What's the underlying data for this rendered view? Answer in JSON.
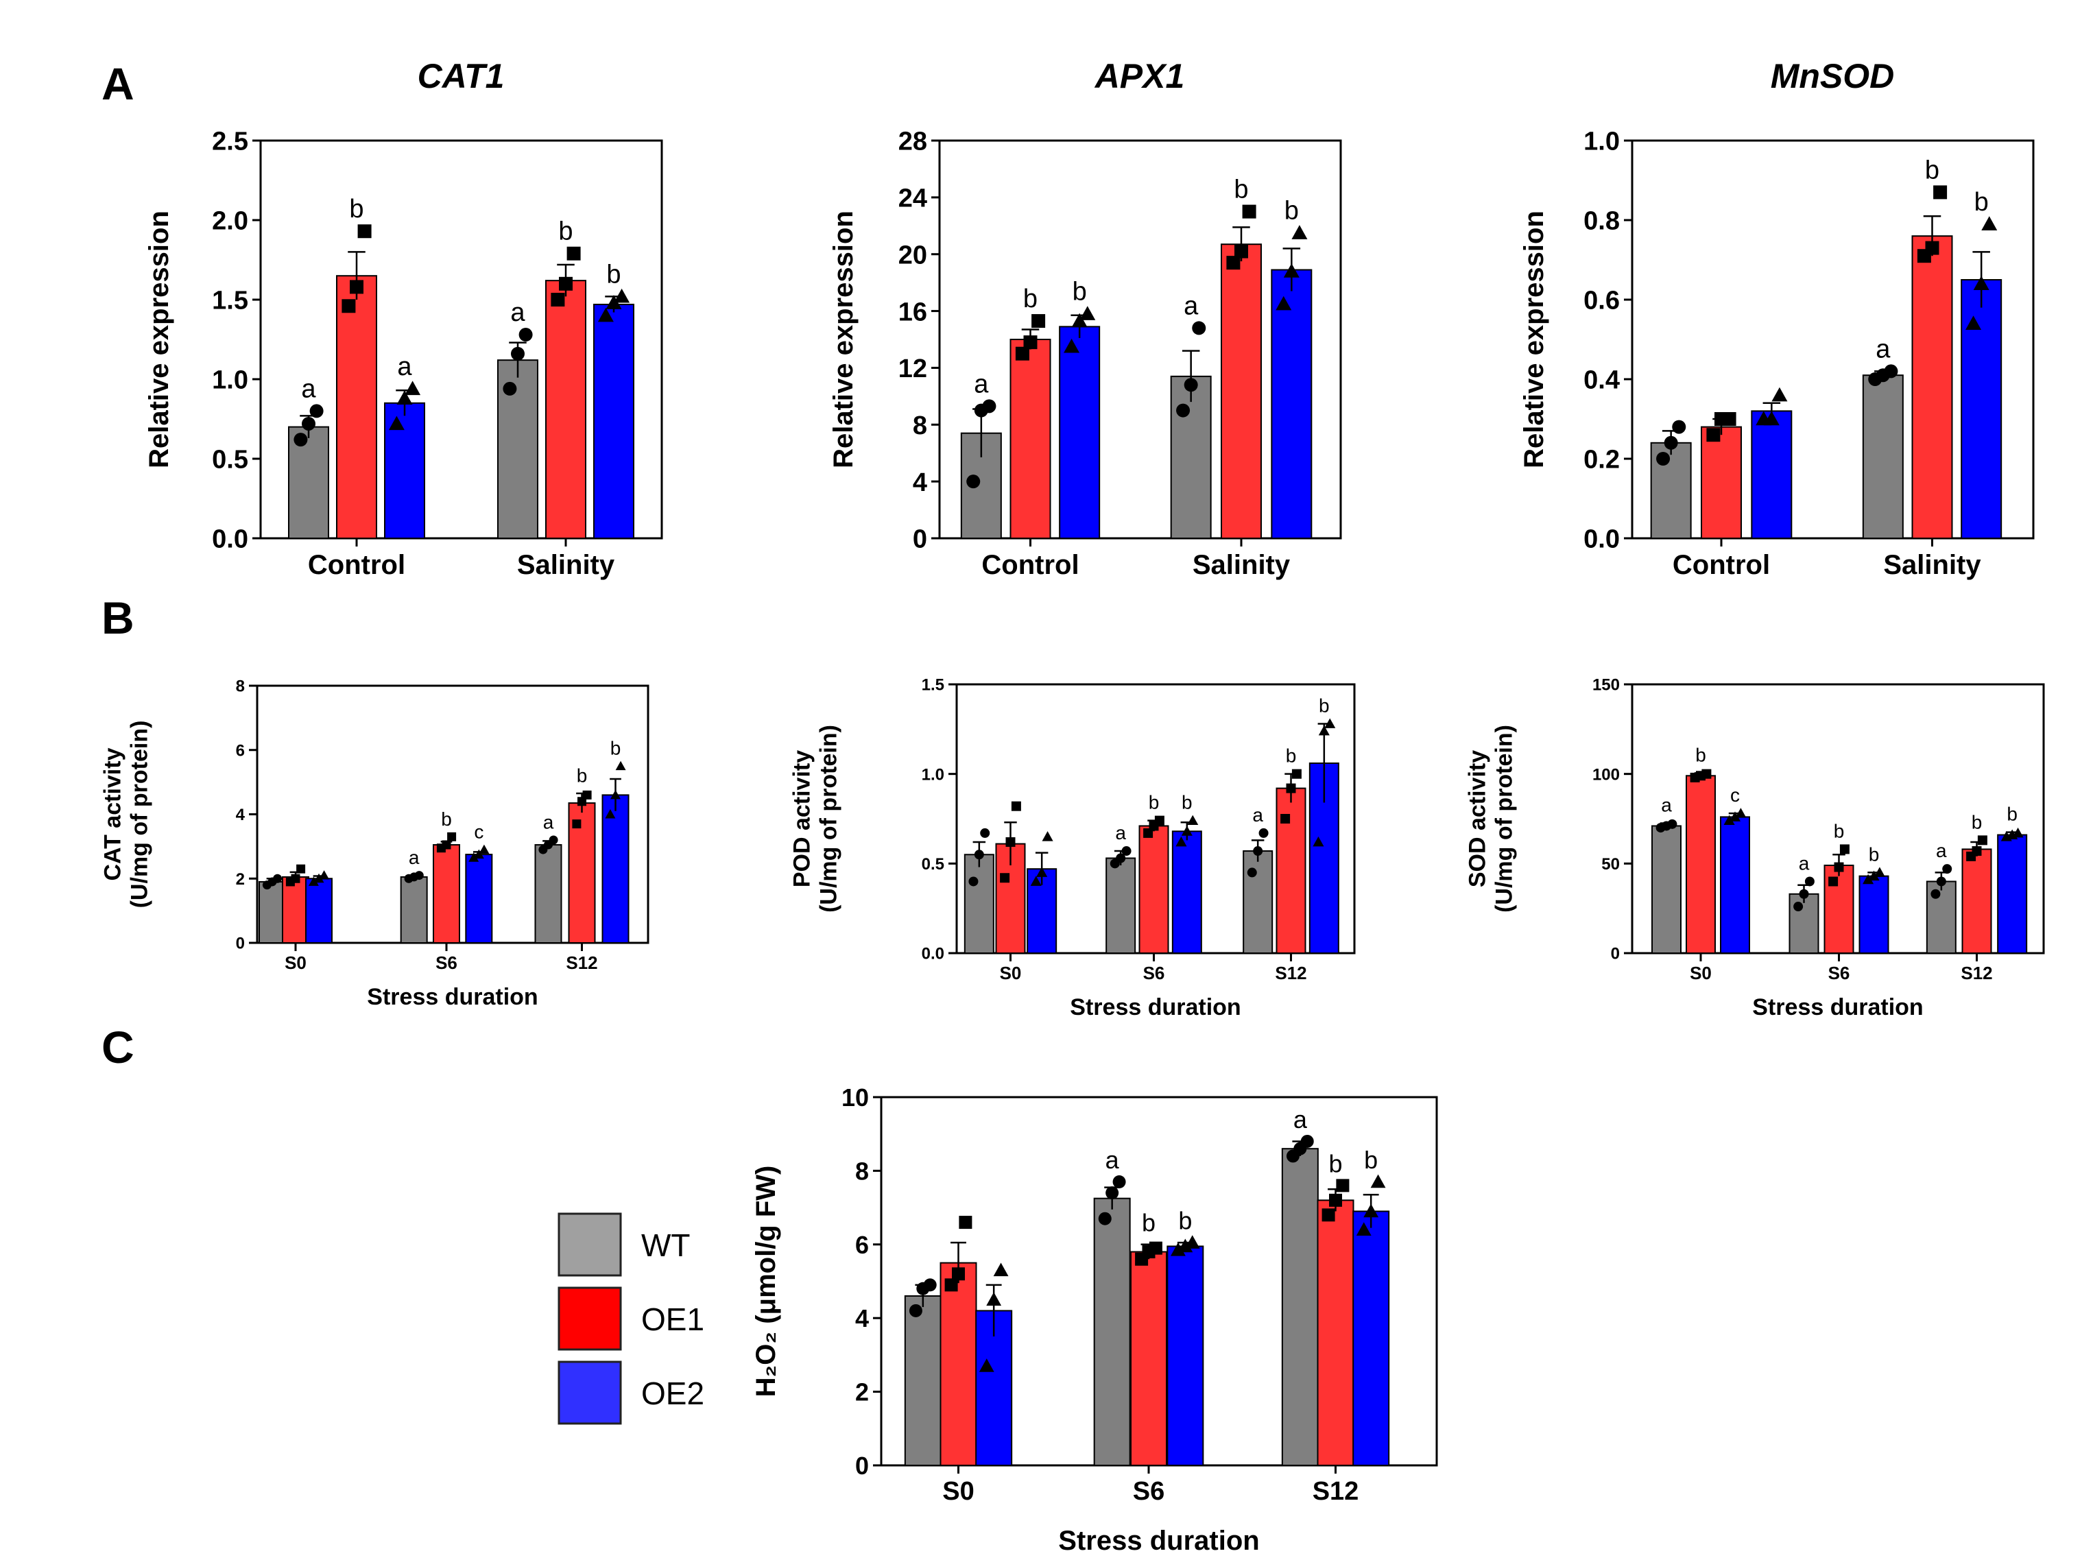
{
  "panels": {
    "A": "A",
    "B": "B",
    "C": "C"
  },
  "colors": {
    "WT": "#808080",
    "OE1": "#ff3333",
    "OE2": "#0000ff",
    "legend_WT": "#a0a0a0",
    "legend_OE1": "#ff0000",
    "legend_OE2": "#3030ff"
  },
  "legend": {
    "labels": [
      "WT",
      "OE1",
      "OE2"
    ]
  },
  "chart_data": [
    {
      "id": "cat1",
      "type": "bar",
      "title": "CAT1",
      "ylabel": [
        "Relative expression"
      ],
      "xlabel": "",
      "categories": [
        "Control",
        "Salinity"
      ],
      "yticks": [
        "0.0",
        "0.5",
        "1.0",
        "1.5",
        "2.0",
        "2.5"
      ],
      "ylim": [
        0,
        2.5
      ],
      "series": [
        {
          "name": "WT",
          "values": [
            0.7,
            1.12
          ],
          "errors": [
            0.07,
            0.11
          ],
          "letters": [
            "a",
            "a"
          ],
          "points": [
            [
              0.62,
              0.72,
              0.8
            ],
            [
              0.94,
              1.16,
              1.28
            ]
          ]
        },
        {
          "name": "OE1",
          "values": [
            1.65,
            1.62
          ],
          "errors": [
            0.15,
            0.1
          ],
          "letters": [
            "b",
            "b"
          ],
          "points": [
            [
              1.46,
              1.58,
              1.93
            ],
            [
              1.5,
              1.6,
              1.79
            ]
          ]
        },
        {
          "name": "OE2",
          "values": [
            0.85,
            1.47
          ],
          "errors": [
            0.08,
            0.05
          ],
          "letters": [
            "a",
            "b"
          ],
          "points": [
            [
              0.72,
              0.88,
              0.94
            ],
            [
              1.4,
              1.48,
              1.52
            ]
          ]
        }
      ]
    },
    {
      "id": "apx1",
      "type": "bar",
      "title": "APX1",
      "ylabel": [
        "Relative expression"
      ],
      "xlabel": "",
      "categories": [
        "Control",
        "Salinity"
      ],
      "yticks": [
        "0",
        "4",
        "8",
        "12",
        "16",
        "20",
        "24",
        "28"
      ],
      "ylim": [
        0,
        28
      ],
      "series": [
        {
          "name": "WT",
          "values": [
            7.4,
            11.4
          ],
          "errors": [
            1.7,
            1.8
          ],
          "letters": [
            "a",
            "a"
          ],
          "points": [
            [
              4.0,
              9.0,
              9.3
            ],
            [
              9.0,
              10.8,
              14.8
            ]
          ]
        },
        {
          "name": "OE1",
          "values": [
            14.0,
            20.7
          ],
          "errors": [
            0.7,
            1.2
          ],
          "letters": [
            "b",
            "b"
          ],
          "points": [
            [
              13.0,
              13.8,
              15.3
            ],
            [
              19.4,
              20.2,
              23.0
            ]
          ]
        },
        {
          "name": "OE2",
          "values": [
            14.9,
            18.9
          ],
          "errors": [
            0.8,
            1.5
          ],
          "letters": [
            "b",
            "b"
          ],
          "points": [
            [
              13.5,
              15.3,
              15.8
            ],
            [
              16.5,
              18.8,
              21.5
            ]
          ]
        }
      ]
    },
    {
      "id": "mnsod",
      "type": "bar",
      "title": "MnSOD",
      "ylabel": [
        "Relative expression"
      ],
      "xlabel": "",
      "categories": [
        "Control",
        "Salinity"
      ],
      "yticks": [
        "0.0",
        "0.2",
        "0.4",
        "0.6",
        "0.8",
        "1.0"
      ],
      "ylim": [
        0,
        1.0
      ],
      "series": [
        {
          "name": "WT",
          "values": [
            0.24,
            0.41
          ],
          "errors": [
            0.03,
            0.01
          ],
          "letters": [
            "",
            "a"
          ],
          "points": [
            [
              0.2,
              0.24,
              0.28
            ],
            [
              0.4,
              0.41,
              0.42
            ]
          ]
        },
        {
          "name": "OE1",
          "values": [
            0.28,
            0.76
          ],
          "errors": [
            0.02,
            0.05
          ],
          "letters": [
            "",
            "b"
          ],
          "points": [
            [
              0.26,
              0.3,
              0.3
            ],
            [
              0.71,
              0.73,
              0.87
            ]
          ]
        },
        {
          "name": "OE2",
          "values": [
            0.32,
            0.65
          ],
          "errors": [
            0.02,
            0.07
          ],
          "letters": [
            "",
            "b"
          ],
          "points": [
            [
              0.3,
              0.3,
              0.36
            ],
            [
              0.54,
              0.64,
              0.79
            ]
          ]
        }
      ]
    },
    {
      "id": "cat_act",
      "type": "bar",
      "title": "",
      "ylabel": [
        "CAT activity",
        "(U/mg of protein)"
      ],
      "xlabel": "Stress duration",
      "categories": [
        "S0",
        "S6",
        "S12"
      ],
      "yticks": [
        "0",
        "2",
        "4",
        "6",
        "8"
      ],
      "ylim": [
        0,
        8
      ],
      "series": [
        {
          "name": "WT",
          "values": [
            1.9,
            2.05,
            3.05
          ],
          "errors": [
            0.1,
            0.05,
            0.12
          ],
          "letters": [
            "",
            "a",
            "a"
          ],
          "points": [
            [
              1.8,
              1.9,
              2.0
            ],
            [
              2.0,
              2.05,
              2.1
            ],
            [
              2.9,
              3.05,
              3.2
            ]
          ]
        },
        {
          "name": "OE1",
          "values": [
            2.05,
            3.05,
            4.35
          ],
          "errors": [
            0.15,
            0.1,
            0.3
          ],
          "letters": [
            "",
            "b",
            "b"
          ],
          "points": [
            [
              1.9,
              2.0,
              2.3
            ],
            [
              2.95,
              3.05,
              3.3
            ],
            [
              3.7,
              4.4,
              4.6
            ]
          ]
        },
        {
          "name": "OE2",
          "values": [
            2.0,
            2.75,
            4.6
          ],
          "errors": [
            0.08,
            0.08,
            0.5
          ],
          "letters": [
            "",
            "c",
            "b"
          ],
          "points": [
            [
              1.9,
              2.0,
              2.1
            ],
            [
              2.65,
              2.75,
              2.9
            ],
            [
              4.0,
              4.6,
              5.5
            ]
          ]
        }
      ]
    },
    {
      "id": "pod_act",
      "type": "bar",
      "title": "",
      "ylabel": [
        "POD activity",
        "(U/mg of protein)"
      ],
      "xlabel": "Stress duration",
      "categories": [
        "S0",
        "S6",
        "S12"
      ],
      "yticks": [
        "0.0",
        "0.5",
        "1.0",
        "1.5"
      ],
      "ylim": [
        0,
        1.5
      ],
      "series": [
        {
          "name": "WT",
          "values": [
            0.55,
            0.53,
            0.57
          ],
          "errors": [
            0.07,
            0.04,
            0.06
          ],
          "letters": [
            "",
            "a",
            "a"
          ],
          "points": [
            [
              0.4,
              0.55,
              0.67
            ],
            [
              0.5,
              0.53,
              0.57
            ],
            [
              0.45,
              0.57,
              0.67
            ]
          ]
        },
        {
          "name": "OE1",
          "values": [
            0.61,
            0.71,
            0.92
          ],
          "errors": [
            0.12,
            0.03,
            0.08
          ],
          "letters": [
            "",
            "b",
            "b"
          ],
          "points": [
            [
              0.42,
              0.62,
              0.82
            ],
            [
              0.67,
              0.71,
              0.74
            ],
            [
              0.75,
              0.92,
              1.0
            ]
          ]
        },
        {
          "name": "OE2",
          "values": [
            0.47,
            0.68,
            1.06
          ],
          "errors": [
            0.09,
            0.05,
            0.22
          ],
          "letters": [
            "",
            "b",
            "b"
          ],
          "points": [
            [
              0.4,
              0.45,
              0.65
            ],
            [
              0.62,
              0.68,
              0.74
            ],
            [
              0.62,
              1.24,
              1.28
            ]
          ]
        }
      ]
    },
    {
      "id": "sod_act",
      "type": "bar",
      "title": "",
      "ylabel": [
        "SOD activity",
        "(U/mg of protein)"
      ],
      "xlabel": "Stress duration",
      "categories": [
        "S0",
        "S6",
        "S12"
      ],
      "yticks": [
        "0",
        "50",
        "100",
        "150"
      ],
      "ylim": [
        0,
        150
      ],
      "series": [
        {
          "name": "WT",
          "values": [
            71,
            33,
            40
          ],
          "errors": [
            1.5,
            5,
            5
          ],
          "letters": [
            "a",
            "a",
            "a"
          ],
          "points": [
            [
              70,
              71,
              72
            ],
            [
              26,
              33,
              40
            ],
            [
              33,
              40,
              47
            ]
          ]
        },
        {
          "name": "OE1",
          "values": [
            99,
            49,
            58
          ],
          "errors": [
            1.5,
            6,
            4
          ],
          "letters": [
            "b",
            "b",
            "b"
          ],
          "points": [
            [
              98,
              99,
              100
            ],
            [
              40,
              48,
              58
            ],
            [
              54,
              57,
              63
            ]
          ]
        },
        {
          "name": "OE2",
          "values": [
            76,
            43,
            66
          ],
          "errors": [
            2,
            2,
            1.5
          ],
          "letters": [
            "c",
            "b",
            "b"
          ],
          "points": [
            [
              74,
              76,
              78
            ],
            [
              41,
              43,
              45
            ],
            [
              65,
              66,
              67
            ]
          ]
        }
      ]
    },
    {
      "id": "h2o2",
      "type": "bar",
      "title": "",
      "ylabel": [
        "H₂O₂ (μmol/g FW)"
      ],
      "xlabel": "Stress duration",
      "categories": [
        "S0",
        "S6",
        "S12"
      ],
      "yticks": [
        "0",
        "2",
        "4",
        "6",
        "8",
        "10"
      ],
      "ylim": [
        0,
        10
      ],
      "series": [
        {
          "name": "WT",
          "values": [
            4.6,
            7.25,
            8.6
          ],
          "errors": [
            0.3,
            0.3,
            0.2
          ],
          "letters": [
            "",
            "a",
            "a"
          ],
          "points": [
            [
              4.2,
              4.8,
              4.9
            ],
            [
              6.7,
              7.4,
              7.7
            ],
            [
              8.4,
              8.6,
              8.8
            ]
          ]
        },
        {
          "name": "OE1",
          "values": [
            5.5,
            5.8,
            7.2
          ],
          "errors": [
            0.55,
            0.2,
            0.3
          ],
          "letters": [
            "",
            "b",
            "b"
          ],
          "points": [
            [
              4.9,
              5.2,
              6.6
            ],
            [
              5.6,
              5.8,
              5.9
            ],
            [
              6.8,
              7.2,
              7.6
            ]
          ]
        },
        {
          "name": "OE2",
          "values": [
            4.2,
            5.95,
            6.9
          ],
          "errors": [
            0.7,
            0.1,
            0.45
          ],
          "letters": [
            "",
            "b",
            "b"
          ],
          "points": [
            [
              2.7,
              4.5,
              5.3
            ],
            [
              5.85,
              5.95,
              6.05
            ],
            [
              6.4,
              6.9,
              7.7
            ]
          ]
        }
      ]
    }
  ]
}
